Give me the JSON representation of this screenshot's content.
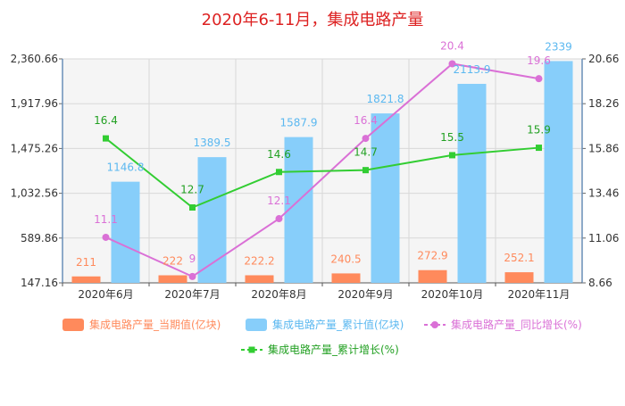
{
  "chart_data": {
    "type": "bar",
    "title": "2020年6-11月，集成电路产量",
    "categories": [
      "2020年6月",
      "2020年7月",
      "2020年8月",
      "2020年9月",
      "2020年10月",
      "2020年11月"
    ],
    "series": [
      {
        "name": "集成电路产量_当期值(亿块)",
        "type": "bar",
        "axis": "left",
        "color": "#ff8a5c",
        "label_color": "#ff8a5c",
        "values": [
          211,
          222,
          222.2,
          240.5,
          272.9,
          252.1
        ],
        "labels": [
          "211",
          "222",
          "222.2",
          "240.5",
          "272.9",
          "252.1"
        ]
      },
      {
        "name": "集成电路产量_累计值(亿块)",
        "type": "bar",
        "axis": "left",
        "color": "#87cefa",
        "label_color": "#5bb8f0",
        "values": [
          1146.8,
          1389.5,
          1587.9,
          1821.8,
          2113.9,
          2339
        ],
        "labels": [
          "1146.8",
          "1389.5",
          "1587.9",
          "1821.8",
          "2113.9",
          "2339"
        ]
      },
      {
        "name": "集成电路产量_同比增长(%)",
        "type": "line",
        "axis": "right",
        "color": "#da70d6",
        "label_color": "#da70d6",
        "marker": "circle",
        "values": [
          11.1,
          9,
          12.1,
          16.4,
          20.4,
          19.6
        ],
        "labels": [
          "11.1",
          "9",
          "12.1",
          "16.4",
          "20.4",
          "19.6"
        ]
      },
      {
        "name": "集成电路产量_累计增长(%)",
        "type": "line",
        "axis": "right",
        "color": "#32cd32",
        "label_color": "#22a022",
        "marker": "square",
        "values": [
          16.4,
          12.7,
          14.6,
          14.7,
          15.5,
          15.9
        ],
        "labels": [
          "16.4",
          "12.7",
          "14.6",
          "14.7",
          "15.5",
          "15.9"
        ]
      }
    ],
    "y_left": {
      "min": 147.16,
      "max": 2360.66,
      "ticks": [
        "147.16",
        "589.86",
        "1,032.56",
        "1,475.26",
        "1,917.96",
        "2,360.66"
      ]
    },
    "y_right": {
      "min": 8.66,
      "max": 20.66,
      "ticks": [
        "8.66",
        "11.06",
        "13.46",
        "15.86",
        "18.26",
        "20.66"
      ]
    },
    "grid": true,
    "legend_position": "bottom",
    "title_color": "#dd2222"
  }
}
